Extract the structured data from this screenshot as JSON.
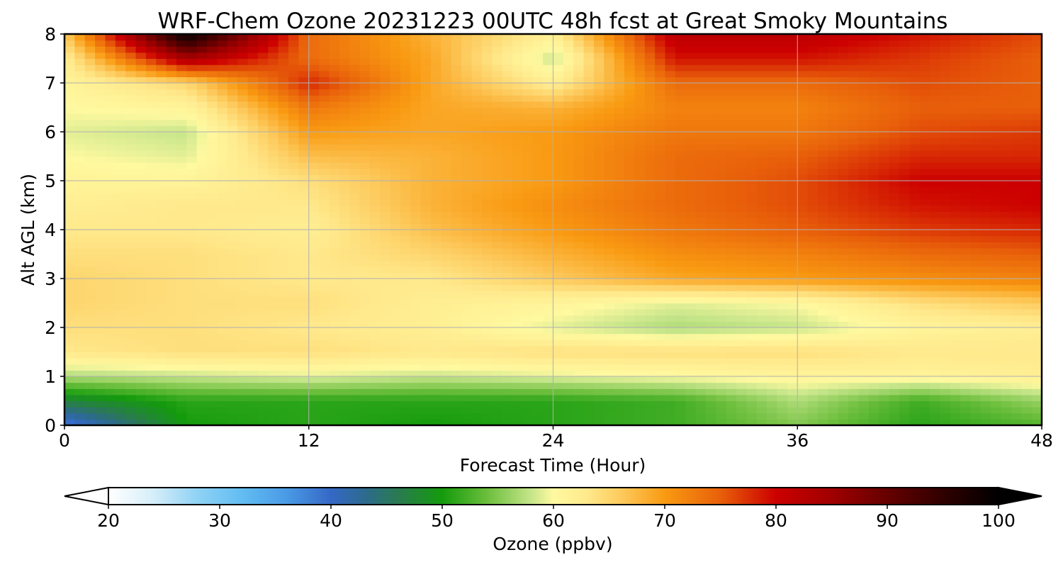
{
  "chart_data": {
    "type": "heatmap",
    "title": "WRF-Chem Ozone  20231223 00UTC 48h fcst at Great Smoky Mountains",
    "xlabel": "Forecast Time (Hour)",
    "ylabel": "Alt AGL (km)",
    "xlim": [
      0,
      48
    ],
    "ylim": [
      0,
      8
    ],
    "x_ticks": [
      "0",
      "12",
      "24",
      "36",
      "48"
    ],
    "y_ticks": [
      "0",
      "1",
      "2",
      "3",
      "4",
      "5",
      "6",
      "7",
      "8"
    ],
    "grid": true,
    "x": [
      0,
      6,
      12,
      18,
      24,
      30,
      36,
      42,
      48
    ],
    "y": [
      0,
      0.5,
      1,
      1.5,
      2,
      2.5,
      3,
      3.5,
      4,
      4.5,
      5,
      5.5,
      6,
      6.5,
      7,
      7.5,
      8
    ],
    "z_units": "ppbv",
    "z": [
      [
        38,
        50,
        51,
        50,
        51,
        52,
        55,
        51,
        53
      ],
      [
        47,
        51,
        51,
        51,
        51,
        52,
        57,
        52,
        56
      ],
      [
        57,
        58,
        59,
        58,
        59,
        60,
        61,
        61,
        62
      ],
      [
        63,
        64,
        64,
        63,
        64,
        64,
        64,
        63,
        63
      ],
      [
        64,
        64,
        63,
        62,
        59,
        57,
        58,
        61,
        62
      ],
      [
        65,
        64,
        64,
        62,
        61,
        59,
        60,
        64,
        66
      ],
      [
        65,
        64,
        63,
        63,
        66,
        69,
        70,
        71,
        72
      ],
      [
        64,
        64,
        63,
        65,
        68,
        71,
        72,
        74,
        75
      ],
      [
        63,
        63,
        62,
        67,
        70,
        73,
        75,
        77,
        78
      ],
      [
        62,
        63,
        63,
        68,
        71,
        74,
        76,
        79,
        80
      ],
      [
        61,
        61,
        64,
        68,
        70,
        74,
        76,
        80,
        80
      ],
      [
        60,
        59,
        67,
        68,
        70,
        74,
        75,
        78,
        78
      ],
      [
        59,
        58,
        70,
        69,
        70,
        73,
        73,
        76,
        77
      ],
      [
        60,
        61,
        73,
        69,
        68,
        72,
        72,
        75,
        75
      ],
      [
        61,
        65,
        78,
        69,
        62,
        74,
        74,
        76,
        75
      ],
      [
        62,
        84,
        74,
        69,
        58,
        79,
        79,
        77,
        75
      ],
      [
        66,
        100,
        74,
        68,
        62,
        82,
        82,
        79,
        76
      ]
    ],
    "colorbar": {
      "label": "Ozone  (ppbv)",
      "min": 20,
      "max": 100,
      "ticks": [
        "20",
        "30",
        "40",
        "50",
        "60",
        "70",
        "80",
        "90",
        "100"
      ],
      "extend": "both",
      "colors": [
        [
          20,
          "#ffffff"
        ],
        [
          24,
          "#d6eef9"
        ],
        [
          28,
          "#8fd2f5"
        ],
        [
          32,
          "#62bdf2"
        ],
        [
          36,
          "#4a9ae6"
        ],
        [
          40,
          "#3568c5"
        ],
        [
          43,
          "#2d6a8f"
        ],
        [
          46,
          "#2a7a50"
        ],
        [
          50,
          "#149b0c"
        ],
        [
          54,
          "#6bbe3c"
        ],
        [
          58,
          "#c6e58a"
        ],
        [
          60,
          "#fff9a0"
        ],
        [
          63,
          "#ffe98c"
        ],
        [
          66,
          "#fdcb5e"
        ],
        [
          70,
          "#f99a12"
        ],
        [
          75,
          "#e8600a"
        ],
        [
          80,
          "#cc0000"
        ],
        [
          85,
          "#a00000"
        ],
        [
          90,
          "#650000"
        ],
        [
          95,
          "#300000"
        ],
        [
          100,
          "#000000"
        ]
      ]
    }
  }
}
